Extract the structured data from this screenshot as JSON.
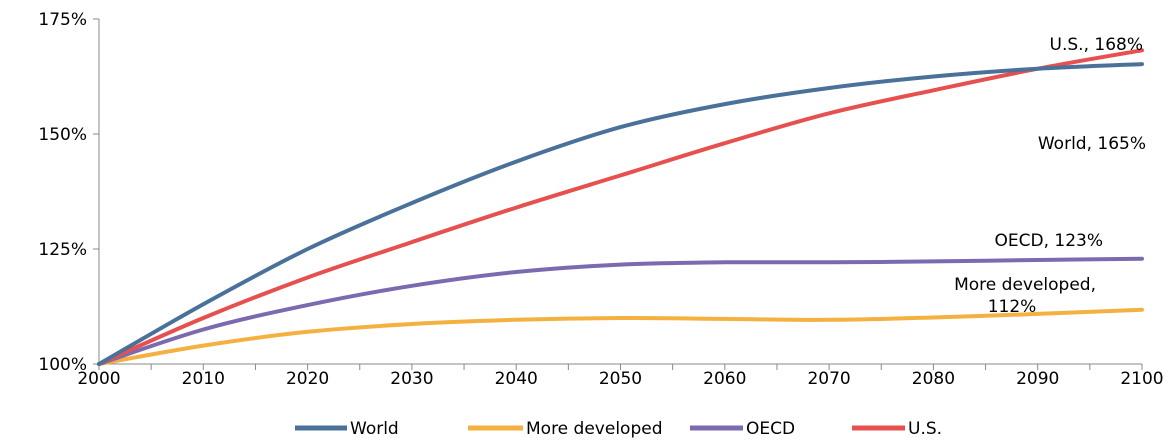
{
  "chart_data": {
    "type": "line",
    "title": "",
    "xlabel": "",
    "ylabel": "",
    "xlim": [
      2000,
      2100
    ],
    "ylim": [
      100,
      175
    ],
    "x_ticks": [
      2000,
      2010,
      2020,
      2030,
      2040,
      2050,
      2060,
      2070,
      2080,
      2090,
      2100
    ],
    "x_tick_labels": [
      "2000",
      "2010",
      "2020",
      "2030",
      "2040",
      "2050",
      "2060",
      "2070",
      "2080",
      "2090",
      "2100"
    ],
    "y_ticks": [
      100,
      125,
      150,
      175
    ],
    "y_tick_labels": [
      "100%",
      "125%",
      "150%",
      "175%"
    ],
    "grid": "none",
    "legend_position": "bottom",
    "x": [
      2000,
      2010,
      2020,
      2030,
      2040,
      2050,
      2060,
      2070,
      2080,
      2090,
      2100
    ],
    "series": [
      {
        "name": "World",
        "color": "#4a7199",
        "values": [
          100,
          113,
          125,
          135,
          144,
          151.5,
          156.5,
          160,
          162.5,
          164.2,
          165.2
        ]
      },
      {
        "name": "More developed",
        "color": "#f4b140",
        "values": [
          100,
          104,
          107,
          108.7,
          109.6,
          110,
          109.8,
          109.6,
          110.1,
          110.9,
          111.8
        ]
      },
      {
        "name": "OECD",
        "color": "#7b6ab0",
        "values": [
          100,
          107.5,
          112.8,
          117,
          120,
          121.6,
          122.1,
          122.1,
          122.3,
          122.6,
          122.9
        ]
      },
      {
        "name": "U.S.",
        "color": "#e6504f",
        "values": [
          100,
          110,
          118.8,
          126.5,
          134,
          141,
          148,
          154.5,
          159.5,
          164.2,
          168.2
        ]
      }
    ],
    "annotations": [
      {
        "text": "U.S., 168%",
        "series": "U.S."
      },
      {
        "text": "World, 165%",
        "series": "World"
      },
      {
        "text": "OECD, 123%",
        "series": "OECD"
      },
      {
        "text_lines": [
          "More developed,",
          "112%"
        ],
        "series": "More developed"
      }
    ]
  }
}
